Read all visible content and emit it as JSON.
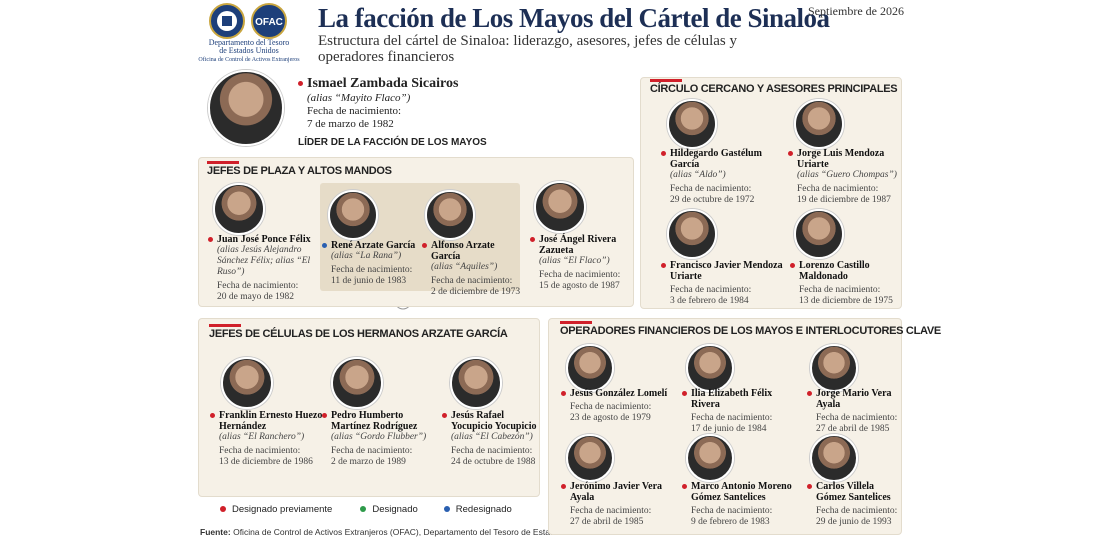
{
  "header": {
    "seal_text": "OFAC",
    "dept_line1": "Departamento del Tesoro",
    "dept_line2": "de Estados Unidos",
    "dept_line3": "Oficina de Control de Activos Extranjeros",
    "title": "La facción de Los Mayos del Cártel de Sinaloa",
    "subtitle": "Estructura del cártel de Sinaloa: liderazgo, asesores, jefes de células y operadores financieros",
    "date": "Septiembre de 2026"
  },
  "birth_label": "Fecha de nacimiento:",
  "leader": {
    "name": "Ismael Zambada Sicairos",
    "alias": "(alias “Mayito Flaco”)",
    "birth_date": "7 de marzo de 1982",
    "role": "LÍDER DE LA FACCIÓN DE LOS MAYOS",
    "dot": "#d0202a"
  },
  "sections": [
    {
      "title": "JEFES DE PLAZA Y ALTOS MANDOS",
      "people": [
        {
          "name": "Juan José Ponce Félix",
          "alias": "(alias Jesús Alejandro Sánchez Félix; alias “El Ruso”)",
          "birth_date": "20 de mayo de 1982",
          "dot": "#d0202a"
        },
        {
          "name": "René Arzate García",
          "alias": "(alias “La Rana”)",
          "birth_date": "11 de junio de 1983",
          "dot": "#2a5fb0"
        },
        {
          "name": "Alfonso Arzate García",
          "alias": "(alias “Aquiles”)",
          "birth_date": "2 de diciembre de 1973",
          "dot": "#d0202a"
        },
        {
          "name": "José Ángel Rivera Zazueta",
          "alias": "(alias “El Flaco”)",
          "birth_date": "15 de agosto de 1987",
          "dot": "#d0202a"
        }
      ]
    },
    {
      "title": "CÍRCULO CERCANO Y ASESORES PRINCIPALES",
      "people": [
        {
          "name": "Hildegardo Gastélum García",
          "alias": "(alias “Aldo”)",
          "birth_date": "29 de octubre de 1972",
          "dot": "#d0202a"
        },
        {
          "name": "Jorge Luis Mendoza Uriarte",
          "alias": "(alias “Guero Chompas”)",
          "birth_date": "19 de diciembre de 1987",
          "dot": "#d0202a"
        },
        {
          "name": "Francisco Javier Mendoza Uriarte",
          "birth_date": "3 de febrero de 1984",
          "dot": "#d0202a"
        },
        {
          "name": "Lorenzo Castillo Maldonado",
          "birth_date": "13 de diciembre de 1975",
          "dot": "#d0202a"
        }
      ]
    },
    {
      "title": "JEFES DE CÉLULAS DE LOS HERMANOS ARZATE GARCÍA",
      "people": [
        {
          "name": "Franklin Ernesto Huezo Hernández",
          "alias": "(alias “El Ranchero”)",
          "birth_date": "13 de diciembre de 1986",
          "dot": "#d0202a"
        },
        {
          "name": "Pedro Humberto Martínez Rodríguez",
          "alias": "(alias “Gordo Flubber”)",
          "birth_date": "2 de marzo de 1989",
          "dot": "#d0202a"
        },
        {
          "name": "Jesús Rafael Yocupicio Yocupicio",
          "alias": "(alias “El Cabezón”)",
          "birth_date": "24 de octubre de 1988",
          "dot": "#d0202a"
        }
      ]
    },
    {
      "title": "OPERADORES FINANCIEROS DE LOS MAYOS E INTERLOCUTORES CLAVE",
      "people": [
        {
          "name": "Jesús González Lomelí",
          "birth_date": "23 de agosto de 1979",
          "dot": "#d0202a"
        },
        {
          "name": "Ilia Elizabeth Félix Rivera",
          "birth_date": "17 de junio de 1984",
          "dot": "#d0202a"
        },
        {
          "name": "Jorge Mario Vera Ayala",
          "birth_date": "27 de abril de 1985",
          "dot": "#d0202a"
        },
        {
          "name": "Jerónimo Javier Vera Ayala",
          "birth_date": "27 de abril de 1985",
          "dot": "#d0202a"
        },
        {
          "name": "Marco Antonio Moreno Gómez Santelices",
          "birth_date": "9 de febrero de 1983",
          "dot": "#d0202a"
        },
        {
          "name": "Carlos Villela Gómez Santelices",
          "birth_date": "29 de junio de 1993",
          "dot": "#d0202a"
        }
      ]
    }
  ],
  "legend": [
    {
      "label": "Designado previamente",
      "color": "#d0202a"
    },
    {
      "label": "Designado",
      "color": "#2e9a4a"
    },
    {
      "label": "Redesignado",
      "color": "#2a5fb0"
    }
  ],
  "source": {
    "label": "Fuente:",
    "text": "Oficina de Control de Activos Extranjeros (OFAC), Departamento del Tesoro de Estados Unidos."
  }
}
